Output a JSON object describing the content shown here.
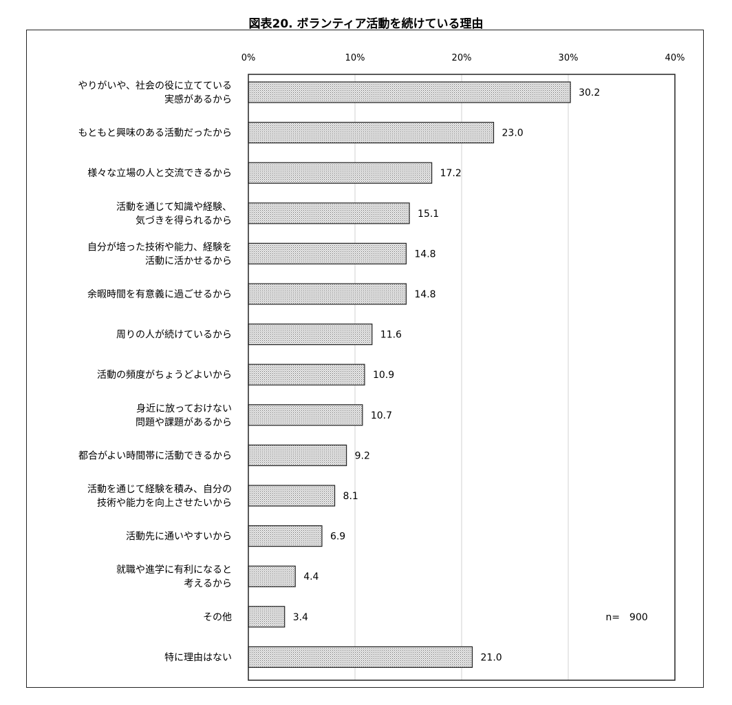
{
  "figure_title": "図表20. ボランティア活動を続けている理由",
  "chart_data": {
    "type": "bar",
    "orientation": "horizontal",
    "categories": [
      [
        "やりがいや、社会の役に立てている",
        "実感があるから"
      ],
      [
        "もともと興味のある活動だったから"
      ],
      [
        "様々な立場の人と交流できるから"
      ],
      [
        "活動を通じて知識や経験、",
        "気づきを得られるから"
      ],
      [
        "自分が培った技術や能力、経験を",
        "活動に活かせるから"
      ],
      [
        "余暇時間を有意義に過ごせるから"
      ],
      [
        "周りの人が続けているから"
      ],
      [
        "活動の頻度がちょうどよいから"
      ],
      [
        "身近に放っておけない",
        "問題や課題があるから"
      ],
      [
        "都合がよい時間帯に活動できるから"
      ],
      [
        "活動を通じて経験を積み、自分の",
        "技術や能力を向上させたいから"
      ],
      [
        "活動先に通いやすいから"
      ],
      [
        "就職や進学に有利になると",
        "考えるから"
      ],
      [
        "その他"
      ],
      [
        "特に理由はない"
      ]
    ],
    "values": [
      30.2,
      23.0,
      17.2,
      15.1,
      14.8,
      14.8,
      11.6,
      10.9,
      10.7,
      9.2,
      8.1,
      6.9,
      4.4,
      3.4,
      21.0
    ],
    "value_labels": [
      "30.2",
      "23.0",
      "17.2",
      "15.1",
      "14.8",
      "14.8",
      "11.6",
      "10.9",
      "10.7",
      "9.2",
      "8.1",
      "6.9",
      "4.4",
      "3.4",
      "21.0"
    ],
    "xlim": [
      0,
      40
    ],
    "x_ticks": [
      0,
      10,
      20,
      30,
      40
    ],
    "x_tick_labels": [
      "0%",
      "10%",
      "20%",
      "30%",
      "40%"
    ],
    "x_axis_position": "top",
    "grid": "vertical",
    "bar_fill": "dotted-gray",
    "note": "n=　900",
    "note_position": "bottom-right"
  }
}
